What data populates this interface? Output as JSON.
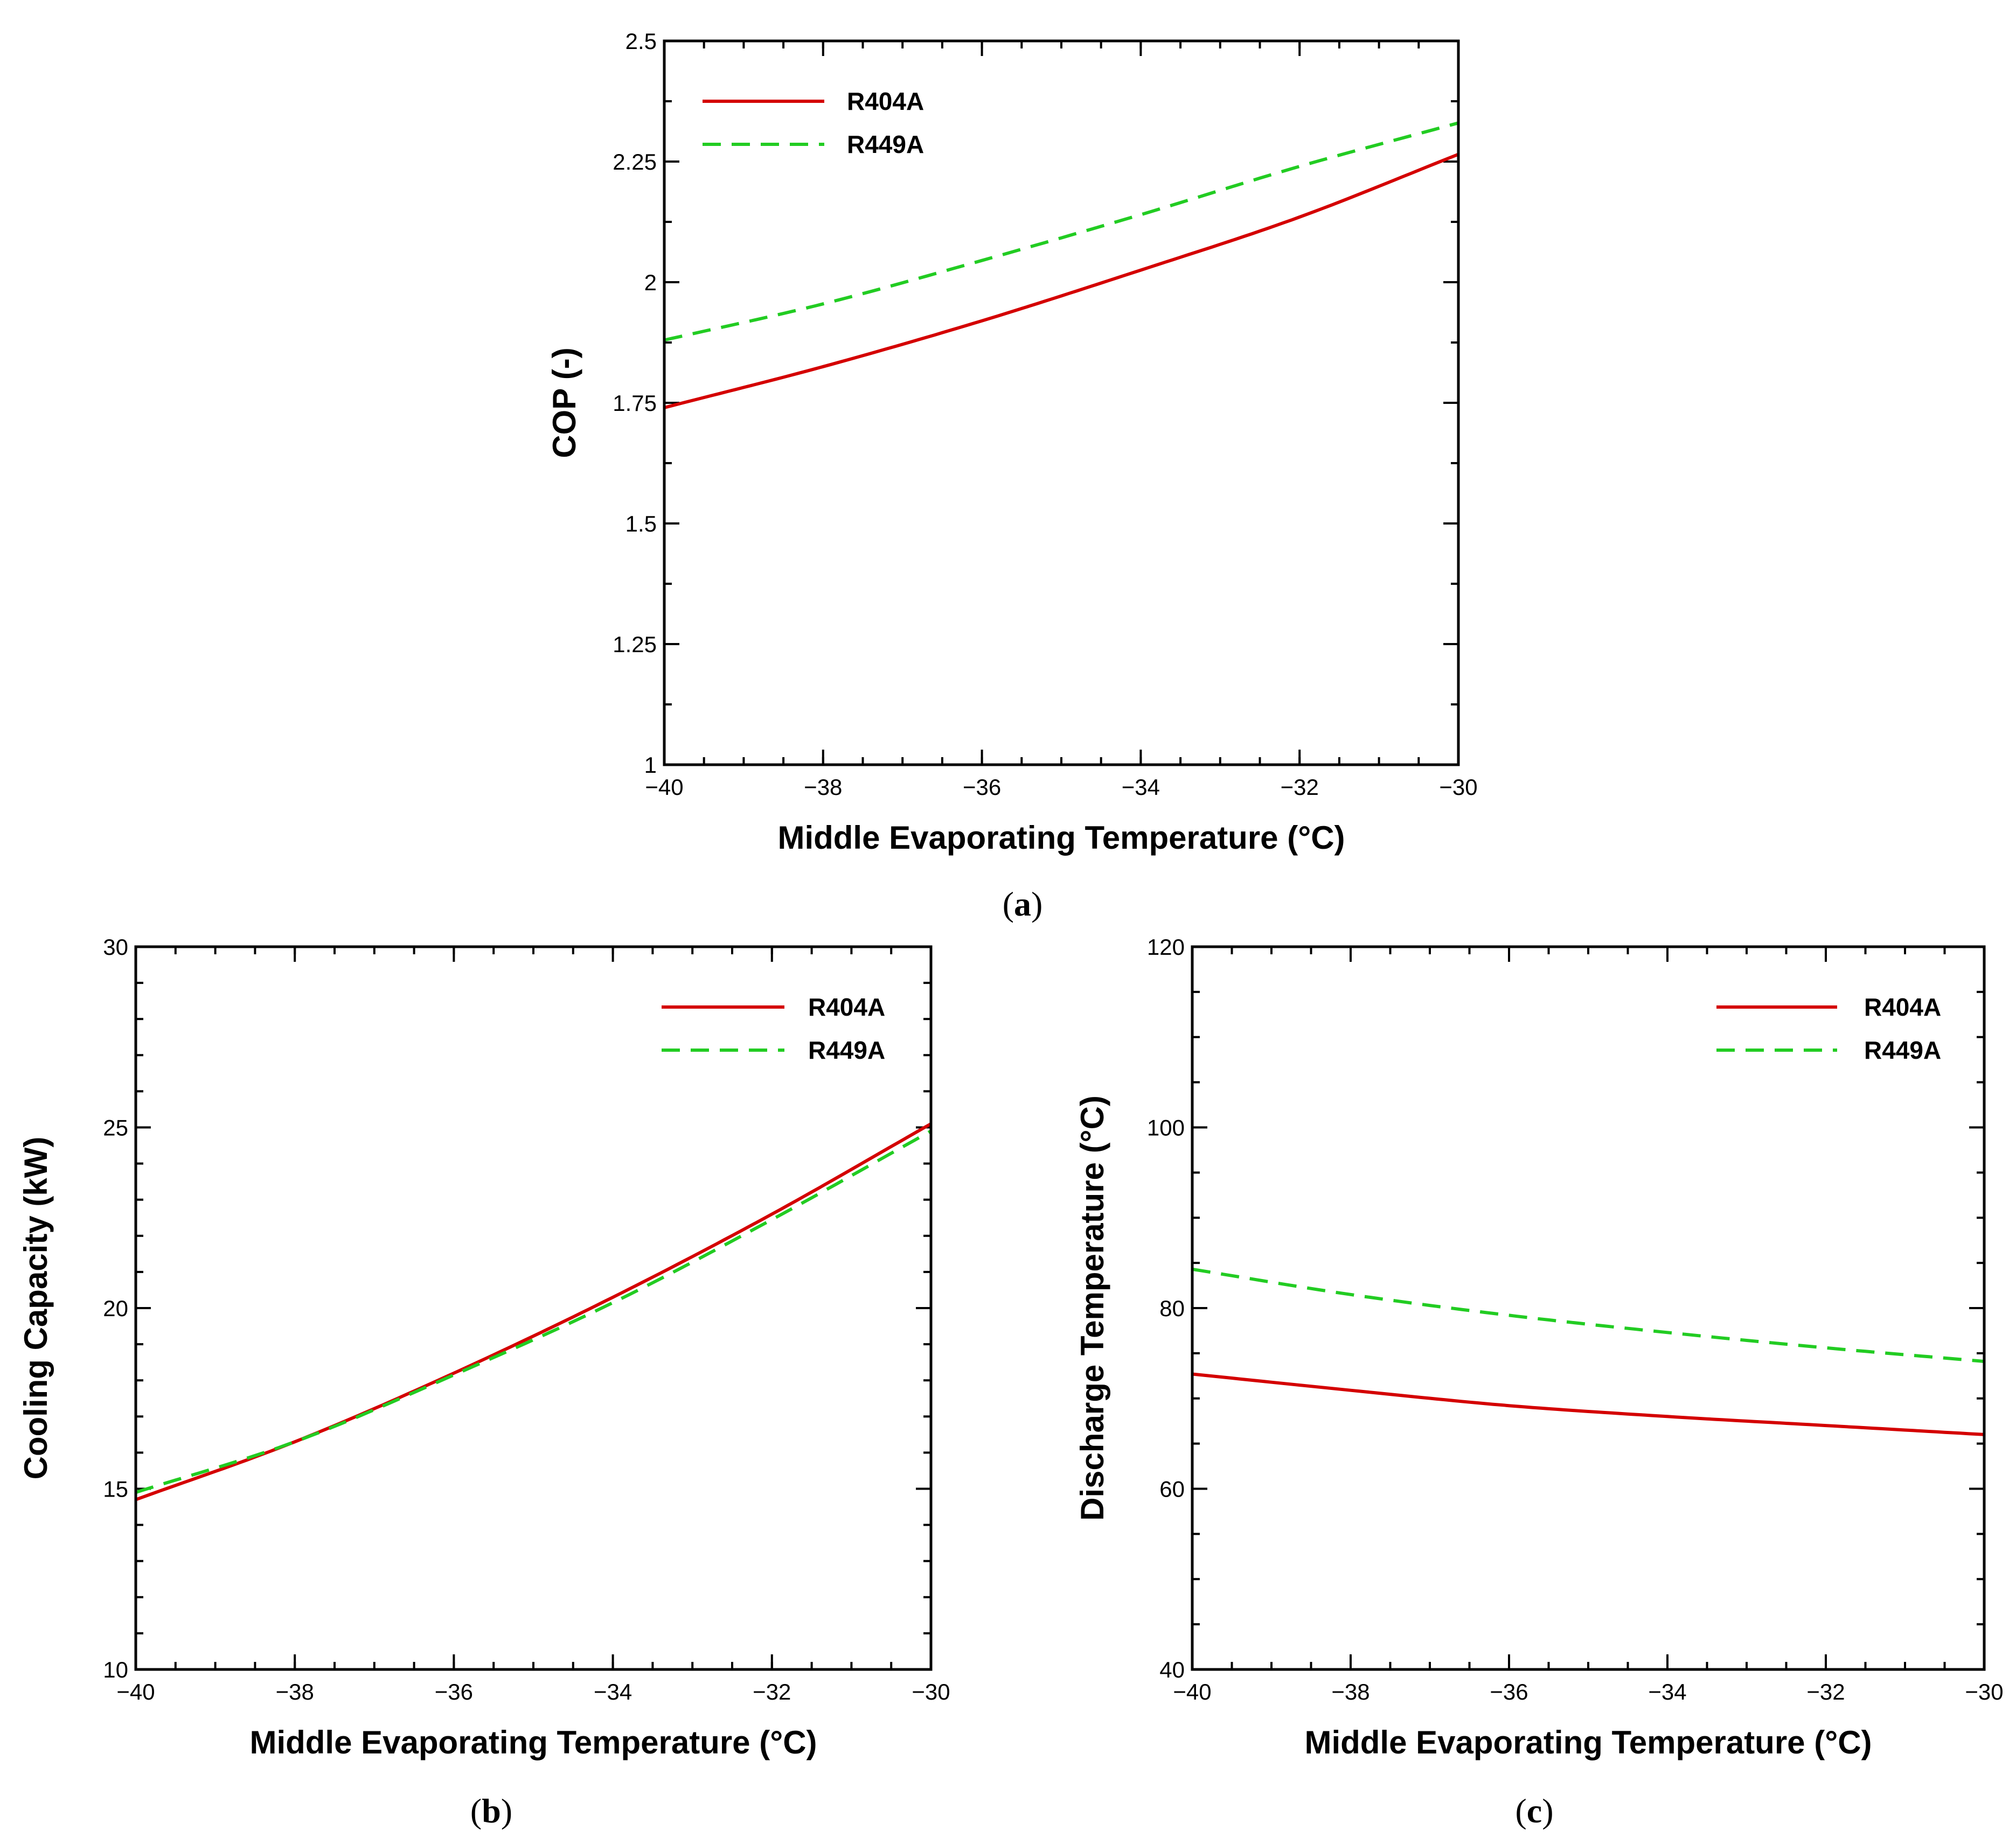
{
  "chart_data": [
    {
      "type": "line",
      "panel": "a",
      "xlabel": "Middle Evaporating Temperature (°C)",
      "ylabel": "COP (-)",
      "xlim": [
        -40,
        -30
      ],
      "ylim": [
        1,
        2.5
      ],
      "x_ticks": [
        -40,
        -38,
        -36,
        -34,
        -32,
        -30
      ],
      "x_tick_labels": [
        "−40",
        "−38",
        "−36",
        "−34",
        "−32",
        "−30"
      ],
      "y_ticks": [
        1,
        1.25,
        1.5,
        1.75,
        2,
        2.25,
        2.5
      ],
      "y_tick_labels": [
        "1",
        "1.25",
        "1.5",
        "1.75",
        "2",
        "2.25",
        "2.5"
      ],
      "x_minor": 0.5,
      "y_minor": 0.125,
      "legend_position": "top-left",
      "x": [
        -40,
        -38,
        -36,
        -34,
        -32,
        -30
      ],
      "series": [
        {
          "name": "R404A",
          "color": "#d40000",
          "style": "solid",
          "values": [
            1.74,
            1.825,
            1.92,
            2.025,
            2.135,
            2.265
          ]
        },
        {
          "name": "R449A",
          "color": "#22cc22",
          "style": "dashed",
          "values": [
            1.88,
            1.955,
            2.045,
            2.14,
            2.24,
            2.33
          ]
        }
      ]
    },
    {
      "type": "line",
      "panel": "b",
      "xlabel": "Middle Evaporating Temperature (°C)",
      "ylabel": "Cooling Capacity (kW)",
      "xlim": [
        -40,
        -30
      ],
      "ylim": [
        10,
        30
      ],
      "x_ticks": [
        -40,
        -38,
        -36,
        -34,
        -32,
        -30
      ],
      "x_tick_labels": [
        "−40",
        "−38",
        "−36",
        "−34",
        "−32",
        "−30"
      ],
      "y_ticks": [
        10,
        15,
        20,
        25,
        30
      ],
      "y_tick_labels": [
        "10",
        "15",
        "20",
        "25",
        "30"
      ],
      "x_minor": 0.5,
      "y_minor": 1,
      "legend_position": "top-right",
      "x": [
        -40,
        -38,
        -36,
        -34,
        -32,
        -30
      ],
      "series": [
        {
          "name": "R404A",
          "color": "#d40000",
          "style": "solid",
          "values": [
            14.7,
            16.3,
            18.2,
            20.3,
            22.6,
            25.1
          ]
        },
        {
          "name": "R449A",
          "color": "#22cc22",
          "style": "dashed",
          "values": [
            14.9,
            16.3,
            18.15,
            20.15,
            22.45,
            24.9
          ]
        }
      ]
    },
    {
      "type": "line",
      "panel": "c",
      "xlabel": "Middle Evaporating Temperature (°C)",
      "ylabel": "Discharge Temperature (°C)",
      "xlim": [
        -40,
        -30
      ],
      "ylim": [
        40,
        120
      ],
      "x_ticks": [
        -40,
        -38,
        -36,
        -34,
        -32,
        -30
      ],
      "x_tick_labels": [
        "−40",
        "−38",
        "−36",
        "−34",
        "−32",
        "−30"
      ],
      "y_ticks": [
        40,
        60,
        80,
        100,
        120
      ],
      "y_tick_labels": [
        "40",
        "60",
        "80",
        "100",
        "120"
      ],
      "x_minor": 0.5,
      "y_minor": 5,
      "legend_position": "top-right",
      "x": [
        -40,
        -38,
        -36,
        -34,
        -32,
        -30
      ],
      "series": [
        {
          "name": "R404A",
          "color": "#d40000",
          "style": "solid",
          "values": [
            72.7,
            70.9,
            69.2,
            68.0,
            67.0,
            66.0
          ]
        },
        {
          "name": "R449A",
          "color": "#22cc22",
          "style": "dashed",
          "values": [
            84.3,
            81.5,
            79.2,
            77.3,
            75.6,
            74.1
          ]
        }
      ]
    }
  ],
  "captions": {
    "a": {
      "open": "(",
      "letter": "a",
      "close": ")"
    },
    "b": {
      "open": "(",
      "letter": "b",
      "close": ")"
    },
    "c": {
      "open": "(",
      "letter": "c",
      "close": ")"
    }
  }
}
